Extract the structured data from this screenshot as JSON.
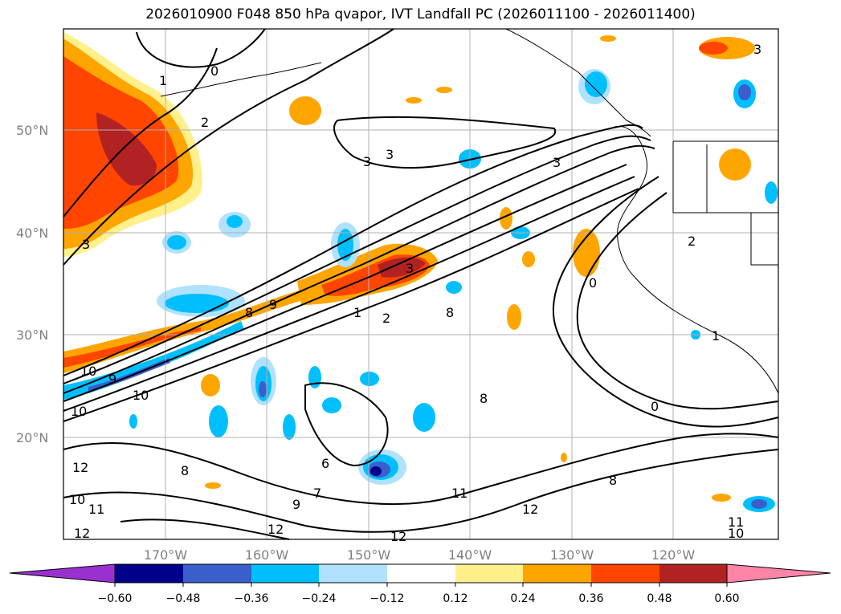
{
  "title": "2026010900 F048 850 hPa qvapor, IVT Landfall PC (2026011100 - 2026011400)",
  "map": {
    "lon_range": [
      -178,
      -107.5
    ],
    "lat_range": [
      10,
      59
    ],
    "lat_labels": [
      "50°N",
      "40°N",
      "30°N",
      "20°N"
    ],
    "lat_values": [
      50,
      40,
      30,
      20
    ],
    "lon_labels": [
      "170°W",
      "160°W",
      "150°W",
      "140°W",
      "130°W",
      "120°W"
    ],
    "lon_values": [
      -170,
      -160,
      -150,
      -140,
      -130,
      -120
    ],
    "contour_labels": [
      "0",
      "1",
      "2",
      "3",
      "3",
      "3",
      "3",
      "3",
      "3",
      "8",
      "9",
      "10",
      "10",
      "9",
      "1",
      "2",
      "8",
      "8",
      "10",
      "6",
      "7",
      "9",
      "12",
      "12",
      "12",
      "8",
      "11",
      "12",
      "10",
      "11",
      "12",
      "11",
      "10",
      "0",
      "2",
      "1",
      "0",
      "8"
    ]
  },
  "colorbar": {
    "ticks": [
      "−0.60",
      "−0.48",
      "−0.36",
      "−0.24",
      "−0.12",
      "0.12",
      "0.24",
      "0.36",
      "0.48",
      "0.60"
    ],
    "colors": [
      "#9b30d0",
      "#00008b",
      "#3a5fcd",
      "#00bfff",
      "#b0e2ff",
      "#ffffff",
      "#fff08c",
      "#ffa500",
      "#ff4500",
      "#b22222",
      "#ff85a8"
    ]
  }
}
